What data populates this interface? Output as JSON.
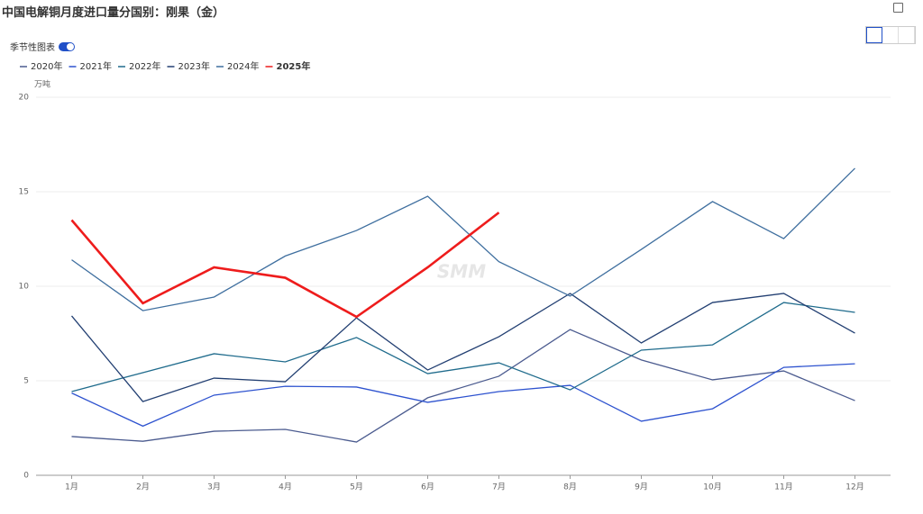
{
  "header": {
    "title": "中国电解铜月度进口量分国别：刚果（金）",
    "toggle_label": "季节性图表"
  },
  "chart_data": {
    "type": "line",
    "unit_label": "万吨",
    "watermark": "SMM",
    "categories": [
      "1月",
      "2月",
      "3月",
      "4月",
      "5月",
      "6月",
      "7月",
      "8月",
      "9月",
      "10月",
      "11月",
      "12月"
    ],
    "ylim": [
      0,
      20
    ],
    "yticks": [
      0,
      5,
      10,
      15,
      20
    ],
    "grid": true,
    "series": [
      {
        "name": "2020年",
        "color": "#4b5b8f",
        "width": 1.3,
        "values": [
          2.05,
          1.8,
          2.33,
          2.43,
          1.76,
          4.1,
          5.24,
          7.71,
          6.1,
          5.05,
          5.52,
          3.95
        ]
      },
      {
        "name": "2021年",
        "color": "#2d52cf",
        "width": 1.3,
        "values": [
          4.35,
          2.6,
          4.24,
          4.71,
          4.67,
          3.86,
          4.43,
          4.76,
          2.86,
          3.52,
          5.71,
          5.9
        ]
      },
      {
        "name": "2022年",
        "color": "#1f6b8c",
        "width": 1.3,
        "values": [
          4.43,
          5.43,
          6.43,
          6.0,
          7.29,
          5.38,
          5.95,
          4.52,
          6.62,
          6.9,
          9.14,
          8.62
        ]
      },
      {
        "name": "2023年",
        "color": "#223f72",
        "width": 1.3,
        "values": [
          8.43,
          3.9,
          5.14,
          4.95,
          8.33,
          5.57,
          7.33,
          9.62,
          7.0,
          9.14,
          9.62,
          7.52
        ]
      },
      {
        "name": "2024年",
        "color": "#3f6f9f",
        "width": 1.3,
        "values": [
          11.4,
          8.71,
          9.43,
          11.6,
          12.95,
          14.76,
          11.3,
          9.48,
          11.95,
          14.48,
          12.52,
          16.24
        ]
      },
      {
        "name": "2025年",
        "color": "#ee1c1c",
        "width": 2.6,
        "values": [
          13.5,
          9.1,
          11.0,
          10.45,
          8.38,
          11.0,
          13.9,
          null,
          null,
          null,
          null,
          null
        ]
      }
    ]
  }
}
